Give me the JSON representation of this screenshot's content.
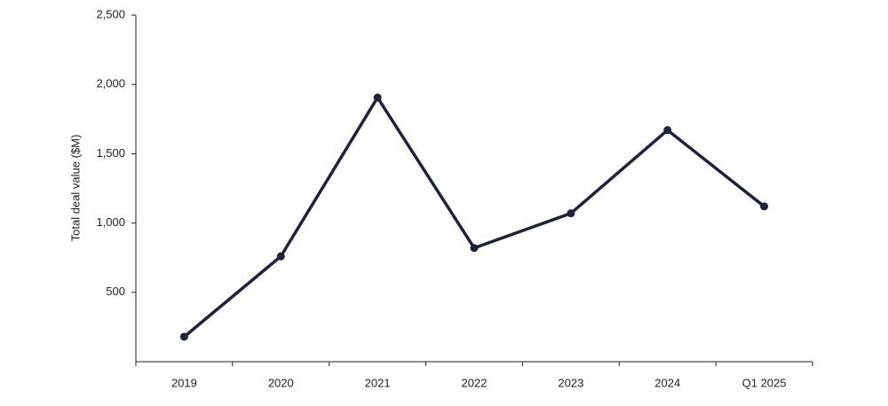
{
  "chart_data": {
    "type": "line",
    "y_label": "Total deal value ($M)",
    "categories": [
      "2019",
      "2020",
      "2021",
      "2022",
      "2023",
      "2024",
      "Q1 2025"
    ],
    "values": [
      180,
      760,
      1905,
      820,
      1070,
      1670,
      1120
    ],
    "color": "#1a2340",
    "ylim": [
      0,
      2500
    ],
    "yticks": [
      500,
      {
        "value": 1000,
        "label": "1,000"
      },
      {
        "value": 1500,
        "label": "1,500"
      },
      {
        "value": 2000,
        "label": "2,000"
      },
      {
        "value": 2500,
        "label": "2,500"
      }
    ],
    "grid": false
  }
}
